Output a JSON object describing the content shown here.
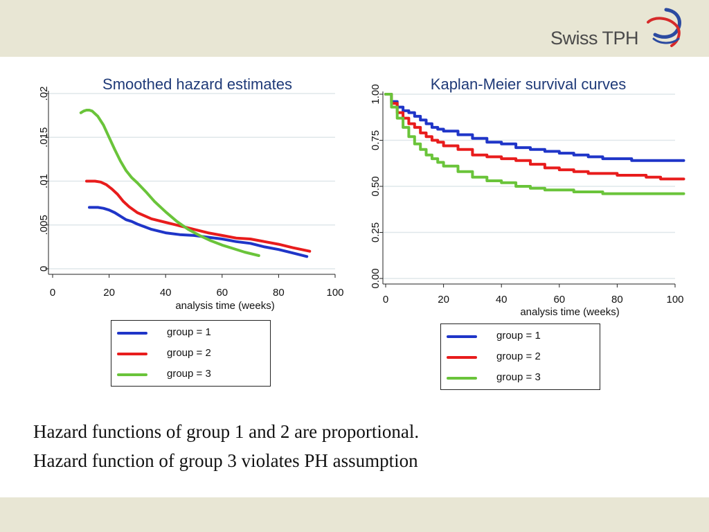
{
  "header": {
    "logo_text": "Swiss TPH"
  },
  "colors": {
    "group1": "#1f35c8",
    "group2": "#e81c1c",
    "group3": "#6ac43a",
    "title": "#1f3a78",
    "band": "#e8e6d4"
  },
  "chart_data": [
    {
      "type": "line",
      "title": "Smoothed hazard estimates",
      "xlabel": "analysis time (weeks)",
      "ylabel": "",
      "xlim": [
        0,
        100
      ],
      "ylim": [
        0,
        0.02
      ],
      "x_ticks": [
        0,
        20,
        40,
        60,
        80,
        100
      ],
      "x_tick_labels": [
        "0",
        "20",
        "40",
        "60",
        "80",
        "100"
      ],
      "y_ticks": [
        0,
        0.005,
        0.01,
        0.015,
        0.02
      ],
      "y_tick_labels": [
        "0",
        ".005",
        ".01",
        ".015",
        ".02"
      ],
      "grid": true,
      "legend": "below",
      "series": [
        {
          "name": "group = 1",
          "x": [
            13,
            16,
            18,
            20,
            22,
            24,
            26,
            28,
            30,
            35,
            40,
            45,
            50,
            55,
            60,
            65,
            70,
            75,
            80,
            85,
            90
          ],
          "y": [
            0.007,
            0.007,
            0.0069,
            0.0067,
            0.0064,
            0.006,
            0.0056,
            0.0054,
            0.0051,
            0.0045,
            0.0041,
            0.0039,
            0.0038,
            0.0036,
            0.0034,
            0.0031,
            0.0029,
            0.0025,
            0.0022,
            0.0018,
            0.0014
          ]
        },
        {
          "name": "group = 2",
          "x": [
            12,
            15,
            17,
            19,
            21,
            23,
            25,
            27,
            30,
            35,
            40,
            45,
            50,
            55,
            60,
            65,
            70,
            75,
            80,
            85,
            91
          ],
          "y": [
            0.01,
            0.01,
            0.0099,
            0.0096,
            0.0091,
            0.0085,
            0.0077,
            0.0071,
            0.0064,
            0.0057,
            0.0053,
            0.0049,
            0.0045,
            0.0041,
            0.0038,
            0.0035,
            0.0034,
            0.0031,
            0.0028,
            0.0024,
            0.002
          ]
        },
        {
          "name": "group = 3",
          "x": [
            10,
            11,
            12,
            13,
            14,
            15,
            16,
            18,
            20,
            22,
            24,
            26,
            28,
            30,
            33,
            36,
            40,
            44,
            48,
            52,
            56,
            60,
            64,
            68,
            73
          ],
          "y": [
            0.0178,
            0.018,
            0.0181,
            0.0181,
            0.018,
            0.0177,
            0.0174,
            0.0164,
            0.015,
            0.0136,
            0.0123,
            0.0112,
            0.0104,
            0.0098,
            0.0088,
            0.0077,
            0.0065,
            0.0054,
            0.0045,
            0.0038,
            0.0032,
            0.0027,
            0.0023,
            0.0019,
            0.0015
          ]
        }
      ]
    },
    {
      "type": "line",
      "title": "Kaplan-Meier survival curves",
      "xlabel": "analysis time (weeks)",
      "ylabel": "",
      "xlim": [
        0,
        100
      ],
      "ylim": [
        0,
        1
      ],
      "x_ticks": [
        0,
        20,
        40,
        60,
        80,
        100
      ],
      "x_tick_labels": [
        "0",
        "20",
        "40",
        "60",
        "80",
        "100"
      ],
      "y_ticks": [
        0,
        0.25,
        0.5,
        0.75,
        1
      ],
      "y_tick_labels": [
        "0.00",
        "0.25",
        "0.50",
        "0.75",
        "1.00"
      ],
      "grid": true,
      "step": true,
      "legend": "below",
      "series": [
        {
          "name": "group = 1",
          "x": [
            0,
            2,
            4,
            6,
            8,
            10,
            12,
            14,
            16,
            18,
            20,
            25,
            30,
            35,
            40,
            45,
            50,
            55,
            60,
            65,
            70,
            75,
            80,
            85,
            90,
            95,
            100,
            103
          ],
          "y": [
            1,
            0.96,
            0.93,
            0.91,
            0.9,
            0.88,
            0.86,
            0.84,
            0.82,
            0.81,
            0.8,
            0.78,
            0.76,
            0.74,
            0.73,
            0.71,
            0.7,
            0.69,
            0.68,
            0.67,
            0.66,
            0.65,
            0.65,
            0.64,
            0.64,
            0.64,
            0.64,
            0.64
          ]
        },
        {
          "name": "group = 2",
          "x": [
            0,
            2,
            4,
            6,
            8,
            10,
            12,
            14,
            16,
            18,
            20,
            25,
            30,
            35,
            40,
            45,
            50,
            55,
            60,
            65,
            70,
            75,
            80,
            85,
            90,
            95,
            100,
            103
          ],
          "y": [
            1,
            0.95,
            0.9,
            0.87,
            0.84,
            0.82,
            0.79,
            0.77,
            0.75,
            0.74,
            0.72,
            0.7,
            0.67,
            0.66,
            0.65,
            0.64,
            0.62,
            0.6,
            0.59,
            0.58,
            0.57,
            0.57,
            0.56,
            0.56,
            0.55,
            0.54,
            0.54,
            0.54
          ]
        },
        {
          "name": "group = 3",
          "x": [
            0,
            2,
            4,
            6,
            8,
            10,
            12,
            14,
            16,
            18,
            20,
            25,
            30,
            35,
            40,
            45,
            50,
            55,
            60,
            65,
            70,
            75,
            80,
            85,
            90,
            95,
            100,
            103
          ],
          "y": [
            1,
            0.93,
            0.87,
            0.82,
            0.77,
            0.73,
            0.7,
            0.67,
            0.65,
            0.63,
            0.61,
            0.58,
            0.55,
            0.53,
            0.52,
            0.5,
            0.49,
            0.48,
            0.48,
            0.47,
            0.47,
            0.46,
            0.46,
            0.46,
            0.46,
            0.46,
            0.46,
            0.46
          ]
        }
      ]
    }
  ],
  "legends": [
    {
      "items": [
        "group = 1",
        "group = 2",
        "group = 3"
      ]
    },
    {
      "items": [
        "group = 1",
        "group = 2",
        "group = 3"
      ]
    }
  ],
  "caption": {
    "line1": "Hazard functions of group 1 and 2 are proportional.",
    "line2": "Hazard function of group 3 violates PH assumption"
  }
}
